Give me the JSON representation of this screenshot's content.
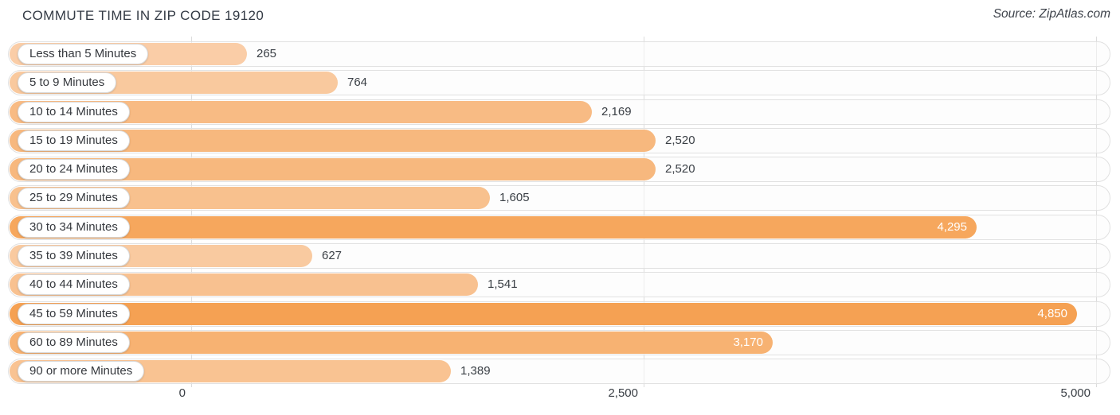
{
  "header": {
    "title": "COMMUTE TIME IN ZIP CODE 19120",
    "source": "Source: ZipAtlas.com"
  },
  "chart_data": {
    "type": "bar",
    "orientation": "horizontal",
    "title": "COMMUTE TIME IN ZIP CODE 19120",
    "source": "Source: ZipAtlas.com",
    "categories": [
      "Less than 5 Minutes",
      "5 to 9 Minutes",
      "10 to 14 Minutes",
      "15 to 19 Minutes",
      "20 to 24 Minutes",
      "25 to 29 Minutes",
      "30 to 34 Minutes",
      "35 to 39 Minutes",
      "40 to 44 Minutes",
      "45 to 59 Minutes",
      "60 to 89 Minutes",
      "90 or more Minutes"
    ],
    "values": [
      265,
      764,
      2169,
      2520,
      2520,
      1605,
      4295,
      627,
      1541,
      4850,
      3170,
      1389
    ],
    "value_labels": [
      "265",
      "764",
      "2,169",
      "2,520",
      "2,520",
      "1,605",
      "4,295",
      "627",
      "1,541",
      "4,850",
      "3,170",
      "1,389"
    ],
    "xlabel": "",
    "ylabel": "",
    "xlim": [
      0,
      5000
    ],
    "x_tick_values": [
      0,
      2500,
      5000
    ],
    "x_tick_labels": [
      "0",
      "2,500",
      "5,000"
    ],
    "grid": "vertical-gridlines",
    "legend": "none",
    "colors": {
      "bar_color_min": "#FAD0AC",
      "bar_color_max": "#F5A050",
      "value_label_inside": "#FFFFFF",
      "value_label_outside": "#3A3F45",
      "gridline": "#DCDCDC",
      "track_border": "#E1E1E1"
    }
  }
}
